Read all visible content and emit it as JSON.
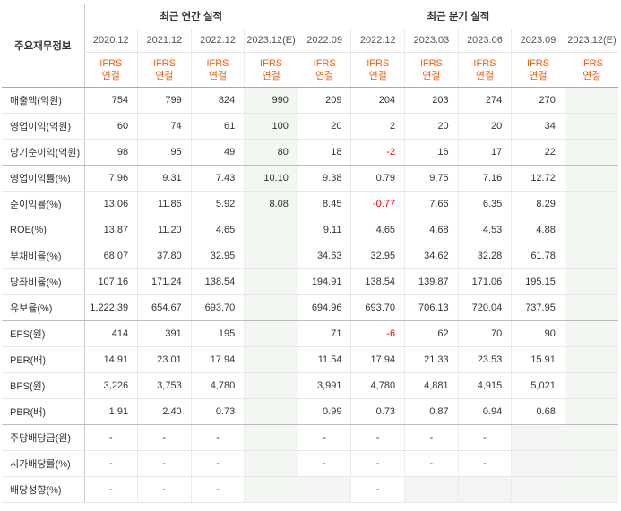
{
  "header": {
    "label": "주요재무정보",
    "annual_group": "최근 연간 실적",
    "quarter_group": "최근 분기 실적",
    "annual_periods": [
      "2020.12",
      "2021.12",
      "2022.12",
      "2023.12(E)"
    ],
    "quarter_periods": [
      "2022.09",
      "2022.12",
      "2023.03",
      "2023.06",
      "2023.09",
      "2023.12(E)"
    ],
    "ifrs_top": "IFRS",
    "ifrs_bottom": "연결"
  },
  "rows": [
    {
      "label": "매출액(억원)",
      "values": [
        "754",
        "799",
        "824",
        "990",
        "209",
        "204",
        "203",
        "274",
        "270",
        ""
      ]
    },
    {
      "label": "영업이익(억원)",
      "values": [
        "60",
        "74",
        "61",
        "100",
        "20",
        "2",
        "20",
        "20",
        "34",
        ""
      ]
    },
    {
      "label": "당기순이익(억원)",
      "values": [
        "98",
        "95",
        "49",
        "80",
        "18",
        "-2",
        "16",
        "17",
        "22",
        ""
      ]
    },
    {
      "label": "영업이익률(%)",
      "values": [
        "7.96",
        "9.31",
        "7.43",
        "10.10",
        "9.38",
        "0.79",
        "9.75",
        "7.16",
        "12.72",
        ""
      ]
    },
    {
      "label": "순이익률(%)",
      "values": [
        "13.06",
        "11.86",
        "5.92",
        "8.08",
        "8.45",
        "-0.77",
        "7.66",
        "6.35",
        "8.29",
        ""
      ]
    },
    {
      "label": "ROE(%)",
      "values": [
        "13.87",
        "11.20",
        "4.65",
        "",
        "9.11",
        "4.65",
        "4.68",
        "4.53",
        "4.88",
        ""
      ]
    },
    {
      "label": "부채비율(%)",
      "values": [
        "68.07",
        "37.80",
        "32.95",
        "",
        "34.63",
        "32.95",
        "34.62",
        "32.28",
        "61.78",
        ""
      ]
    },
    {
      "label": "당좌비율(%)",
      "values": [
        "107.16",
        "171.24",
        "138.54",
        "",
        "194.91",
        "138.54",
        "139.87",
        "171.06",
        "195.15",
        ""
      ]
    },
    {
      "label": "유보율(%)",
      "values": [
        "1,222.39",
        "654.67",
        "693.70",
        "",
        "694.96",
        "693.70",
        "706.13",
        "720.04",
        "737.95",
        ""
      ]
    },
    {
      "label": "EPS(원)",
      "values": [
        "414",
        "391",
        "195",
        "",
        "71",
        "-6",
        "62",
        "70",
        "90",
        ""
      ]
    },
    {
      "label": "PER(배)",
      "values": [
        "14.91",
        "23.01",
        "17.94",
        "",
        "11.54",
        "17.94",
        "21.33",
        "23.53",
        "15.91",
        ""
      ]
    },
    {
      "label": "BPS(원)",
      "values": [
        "3,226",
        "3,753",
        "4,780",
        "",
        "3,991",
        "4,780",
        "4,881",
        "4,915",
        "5,021",
        ""
      ]
    },
    {
      "label": "PBR(배)",
      "values": [
        "1.91",
        "2.40",
        "0.73",
        "",
        "0.99",
        "0.73",
        "0.87",
        "0.94",
        "0.68",
        ""
      ]
    },
    {
      "label": "주당배당금(원)",
      "values": [
        "-",
        "-",
        "-",
        "",
        "-",
        "-",
        "-",
        "-",
        "",
        ""
      ]
    },
    {
      "label": "시가배당률(%)",
      "values": [
        "-",
        "-",
        "-",
        "",
        "-",
        "-",
        "-",
        "-",
        "",
        ""
      ]
    },
    {
      "label": "배당성향(%)",
      "values": [
        "-",
        "-",
        "-",
        "",
        "",
        "-",
        "",
        "",
        "",
        ""
      ]
    }
  ]
}
